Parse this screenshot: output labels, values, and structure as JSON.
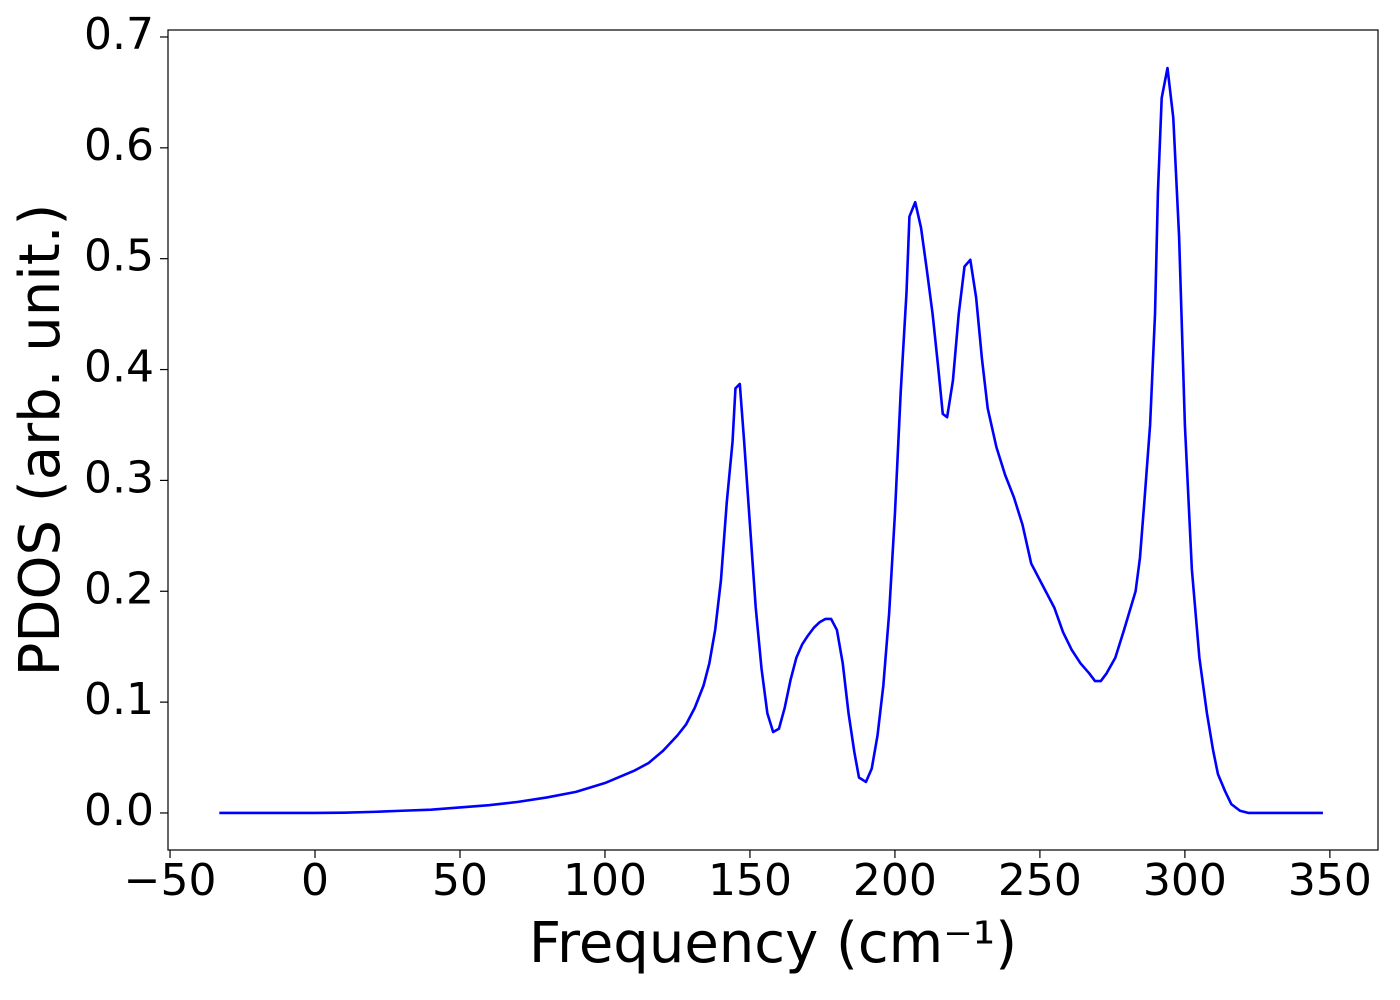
{
  "chart_data": {
    "type": "line",
    "xlabel": "Frequency (cm⁻¹)",
    "ylabel": "PDOS (arb. unit.)",
    "xlim": [
      -50.7,
      366.6
    ],
    "ylim": [
      -0.0334,
      0.7063
    ],
    "xticks": [
      {
        "value": -50,
        "label": "−50"
      },
      0,
      50,
      100,
      150,
      200,
      250,
      300,
      350
    ],
    "yticks": [
      {
        "value": 0,
        "label": "0.0"
      },
      0.1,
      0.2,
      0.3,
      0.4,
      0.5,
      0.6,
      0.7
    ],
    "grid": false,
    "series": [
      {
        "color": "#0000ff",
        "x": [
          -33,
          0,
          10,
          20,
          30,
          40,
          50,
          60,
          70,
          80,
          90,
          100,
          110,
          115,
          120,
          125,
          128,
          131,
          134,
          136,
          138,
          140,
          142,
          144,
          145,
          146.5,
          148,
          150,
          152,
          154,
          156,
          158,
          160,
          162,
          164,
          166,
          168,
          170,
          172,
          174,
          176,
          178,
          180,
          182,
          184,
          186,
          187.6,
          190,
          192,
          194,
          196,
          198,
          200,
          202,
          204,
          205,
          207,
          209,
          211,
          213,
          215,
          216.5,
          218,
          220,
          222,
          224,
          226,
          228,
          230,
          232,
          235,
          238,
          241,
          244,
          247,
          251,
          255,
          258,
          261,
          264,
          267,
          269,
          271,
          273,
          276,
          279,
          283,
          284.5,
          286,
          288,
          289.7,
          290.7,
          292,
          294,
          296,
          298,
          300,
          302.4,
          305,
          307.6,
          309.7,
          311.4,
          313.8,
          316,
          319,
          322,
          347.6
        ],
        "values": [
          0,
          0,
          0.0003,
          0.001,
          0.002,
          0.003,
          0.005,
          0.007,
          0.01,
          0.014,
          0.019,
          0.027,
          0.038,
          0.045,
          0.056,
          0.07,
          0.08,
          0.095,
          0.115,
          0.135,
          0.165,
          0.21,
          0.28,
          0.335,
          0.383,
          0.387,
          0.335,
          0.26,
          0.185,
          0.13,
          0.09,
          0.073,
          0.076,
          0.095,
          0.12,
          0.14,
          0.152,
          0.16,
          0.167,
          0.172,
          0.175,
          0.175,
          0.165,
          0.135,
          0.09,
          0.055,
          0.032,
          0.028,
          0.04,
          0.07,
          0.115,
          0.18,
          0.27,
          0.38,
          0.47,
          0.538,
          0.551,
          0.528,
          0.49,
          0.45,
          0.4,
          0.36,
          0.357,
          0.39,
          0.45,
          0.493,
          0.499,
          0.465,
          0.41,
          0.365,
          0.33,
          0.305,
          0.285,
          0.26,
          0.225,
          0.205,
          0.185,
          0.163,
          0.147,
          0.135,
          0.126,
          0.119,
          0.119,
          0.126,
          0.14,
          0.165,
          0.2,
          0.23,
          0.28,
          0.35,
          0.45,
          0.56,
          0.645,
          0.672,
          0.627,
          0.52,
          0.35,
          0.22,
          0.14,
          0.09,
          0.057,
          0.035,
          0.02,
          0.008,
          0.002,
          0,
          0
        ]
      }
    ]
  }
}
